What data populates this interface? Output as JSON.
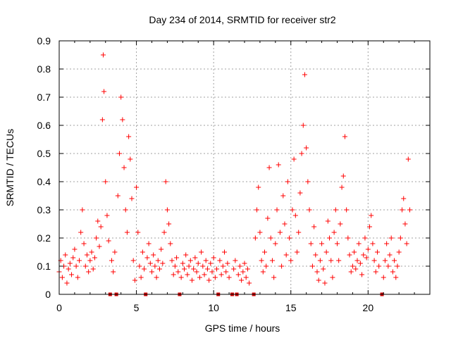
{
  "chart_data": {
    "type": "scatter",
    "title": "Day 234 of 2014, SRMTID for receiver str2",
    "xlabel": "GPS time / hours",
    "ylabel": "SRMTID / TECUs",
    "xlim": [
      0,
      24
    ],
    "ylim": [
      0,
      0.9
    ],
    "xticks": [
      0,
      5,
      10,
      15,
      20
    ],
    "xtick_labels": [
      "0",
      "5",
      "10",
      "15",
      "20"
    ],
    "yticks": [
      0,
      0.1,
      0.2,
      0.3,
      0.4,
      0.5,
      0.6,
      0.7,
      0.8,
      0.9
    ],
    "ytick_labels": [
      "0",
      "0.1",
      "0.2",
      "0.3",
      "0.4",
      "0.5",
      "0.6",
      "0.7",
      "0.8",
      "0.9"
    ],
    "grid": true,
    "marker": "+",
    "series_color": "#ff0000",
    "gap_marker_color": "#cc0000",
    "gap_markers_x": [
      3.3,
      3.7,
      5.6,
      7.8,
      10.3,
      11.2,
      11.5,
      12.6,
      20.9
    ],
    "series": [
      {
        "name": "SRMTID",
        "points": [
          [
            0.0,
            0.08
          ],
          [
            0.1,
            0.12
          ],
          [
            0.2,
            0.06
          ],
          [
            0.3,
            0.1
          ],
          [
            0.4,
            0.14
          ],
          [
            0.5,
            0.04
          ],
          [
            0.6,
            0.09
          ],
          [
            0.7,
            0.11
          ],
          [
            0.8,
            0.07
          ],
          [
            0.9,
            0.13
          ],
          [
            1.0,
            0.16
          ],
          [
            1.1,
            0.1
          ],
          [
            1.2,
            0.06
          ],
          [
            1.3,
            0.12
          ],
          [
            1.4,
            0.22
          ],
          [
            1.5,
            0.3
          ],
          [
            1.6,
            0.18
          ],
          [
            1.7,
            0.1
          ],
          [
            1.8,
            0.14
          ],
          [
            1.9,
            0.08
          ],
          [
            2.0,
            0.12
          ],
          [
            2.1,
            0.15
          ],
          [
            2.2,
            0.09
          ],
          [
            2.3,
            0.13
          ],
          [
            2.4,
            0.2
          ],
          [
            2.5,
            0.26
          ],
          [
            2.6,
            0.17
          ],
          [
            2.7,
            0.24
          ],
          [
            2.8,
            0.62
          ],
          [
            2.85,
            0.85
          ],
          [
            2.9,
            0.72
          ],
          [
            3.0,
            0.4
          ],
          [
            3.1,
            0.28
          ],
          [
            3.2,
            0.19
          ],
          [
            3.4,
            0.12
          ],
          [
            3.5,
            0.08
          ],
          [
            3.6,
            0.15
          ],
          [
            3.8,
            0.35
          ],
          [
            3.9,
            0.5
          ],
          [
            4.0,
            0.7
          ],
          [
            4.1,
            0.62
          ],
          [
            4.2,
            0.45
          ],
          [
            4.3,
            0.3
          ],
          [
            4.4,
            0.22
          ],
          [
            4.5,
            0.56
          ],
          [
            4.6,
            0.48
          ],
          [
            4.7,
            0.34
          ],
          [
            4.8,
            0.12
          ],
          [
            4.9,
            0.05
          ],
          [
            5.0,
            0.38
          ],
          [
            5.1,
            0.22
          ],
          [
            5.2,
            0.1
          ],
          [
            5.3,
            0.06
          ],
          [
            5.4,
            0.15
          ],
          [
            5.5,
            0.09
          ],
          [
            5.7,
            0.13
          ],
          [
            5.8,
            0.18
          ],
          [
            5.9,
            0.11
          ],
          [
            6.0,
            0.08
          ],
          [
            6.1,
            0.14
          ],
          [
            6.2,
            0.1
          ],
          [
            6.3,
            0.06
          ],
          [
            6.4,
            0.12
          ],
          [
            6.5,
            0.09
          ],
          [
            6.6,
            0.16
          ],
          [
            6.7,
            0.11
          ],
          [
            6.8,
            0.22
          ],
          [
            6.9,
            0.4
          ],
          [
            7.0,
            0.3
          ],
          [
            7.1,
            0.25
          ],
          [
            7.2,
            0.18
          ],
          [
            7.3,
            0.12
          ],
          [
            7.4,
            0.07
          ],
          [
            7.5,
            0.1
          ],
          [
            7.6,
            0.13
          ],
          [
            7.7,
            0.08
          ],
          [
            7.9,
            0.06
          ],
          [
            8.0,
            0.11
          ],
          [
            8.1,
            0.09
          ],
          [
            8.2,
            0.14
          ],
          [
            8.3,
            0.07
          ],
          [
            8.4,
            0.1
          ],
          [
            8.5,
            0.12
          ],
          [
            8.6,
            0.05
          ],
          [
            8.7,
            0.09
          ],
          [
            8.8,
            0.13
          ],
          [
            8.9,
            0.08
          ],
          [
            9.0,
            0.11
          ],
          [
            9.1,
            0.06
          ],
          [
            9.2,
            0.15
          ],
          [
            9.3,
            0.1
          ],
          [
            9.4,
            0.07
          ],
          [
            9.5,
            0.12
          ],
          [
            9.6,
            0.09
          ],
          [
            9.7,
            0.05
          ],
          [
            9.8,
            0.11
          ],
          [
            9.9,
            0.08
          ],
          [
            10.0,
            0.13
          ],
          [
            10.1,
            0.06
          ],
          [
            10.2,
            0.09
          ],
          [
            10.4,
            0.12
          ],
          [
            10.5,
            0.07
          ],
          [
            10.6,
            0.1
          ],
          [
            10.7,
            0.15
          ],
          [
            10.8,
            0.08
          ],
          [
            10.9,
            0.11
          ],
          [
            11.0,
            0.06
          ],
          [
            11.3,
            0.09
          ],
          [
            11.4,
            0.12
          ],
          [
            11.6,
            0.07
          ],
          [
            11.7,
            0.1
          ],
          [
            11.8,
            0.05
          ],
          [
            11.9,
            0.08
          ],
          [
            12.0,
            0.11
          ],
          [
            12.1,
            0.06
          ],
          [
            12.2,
            0.09
          ],
          [
            12.3,
            0.04
          ],
          [
            12.7,
            0.2
          ],
          [
            12.8,
            0.3
          ],
          [
            12.9,
            0.38
          ],
          [
            13.0,
            0.22
          ],
          [
            13.1,
            0.12
          ],
          [
            13.2,
            0.08
          ],
          [
            13.3,
            0.15
          ],
          [
            13.4,
            0.1
          ],
          [
            13.5,
            0.27
          ],
          [
            13.6,
            0.45
          ],
          [
            13.7,
            0.2
          ],
          [
            13.8,
            0.12
          ],
          [
            13.9,
            0.06
          ],
          [
            14.0,
            0.18
          ],
          [
            14.1,
            0.3
          ],
          [
            14.2,
            0.46
          ],
          [
            14.3,
            0.22
          ],
          [
            14.4,
            0.1
          ],
          [
            14.5,
            0.35
          ],
          [
            14.6,
            0.25
          ],
          [
            14.7,
            0.14
          ],
          [
            14.8,
            0.4
          ],
          [
            14.9,
            0.2
          ],
          [
            15.0,
            0.12
          ],
          [
            15.1,
            0.3
          ],
          [
            15.2,
            0.48
          ],
          [
            15.3,
            0.28
          ],
          [
            15.4,
            0.15
          ],
          [
            15.5,
            0.22
          ],
          [
            15.6,
            0.36
          ],
          [
            15.7,
            0.5
          ],
          [
            15.8,
            0.6
          ],
          [
            15.9,
            0.78
          ],
          [
            16.0,
            0.52
          ],
          [
            16.1,
            0.4
          ],
          [
            16.2,
            0.3
          ],
          [
            16.3,
            0.18
          ],
          [
            16.4,
            0.1
          ],
          [
            16.5,
            0.24
          ],
          [
            16.6,
            0.14
          ],
          [
            16.7,
            0.08
          ],
          [
            16.8,
            0.05
          ],
          [
            16.9,
            0.12
          ],
          [
            17.0,
            0.18
          ],
          [
            17.1,
            0.09
          ],
          [
            17.2,
            0.04
          ],
          [
            17.3,
            0.15
          ],
          [
            17.4,
            0.26
          ],
          [
            17.5,
            0.2
          ],
          [
            17.6,
            0.12
          ],
          [
            17.7,
            0.06
          ],
          [
            17.8,
            0.22
          ],
          [
            17.9,
            0.3
          ],
          [
            18.0,
            0.18
          ],
          [
            18.1,
            0.12
          ],
          [
            18.2,
            0.25
          ],
          [
            18.3,
            0.38
          ],
          [
            18.4,
            0.42
          ],
          [
            18.5,
            0.56
          ],
          [
            18.6,
            0.3
          ],
          [
            18.7,
            0.2
          ],
          [
            18.8,
            0.14
          ],
          [
            18.9,
            0.08
          ],
          [
            19.0,
            0.1
          ],
          [
            19.1,
            0.15
          ],
          [
            19.2,
            0.09
          ],
          [
            19.3,
            0.12
          ],
          [
            19.4,
            0.18
          ],
          [
            19.5,
            0.11
          ],
          [
            19.6,
            0.07
          ],
          [
            19.7,
            0.14
          ],
          [
            19.8,
            0.2
          ],
          [
            19.9,
            0.13
          ],
          [
            20.0,
            0.16
          ],
          [
            20.1,
            0.24
          ],
          [
            20.2,
            0.28
          ],
          [
            20.3,
            0.18
          ],
          [
            20.4,
            0.12
          ],
          [
            20.5,
            0.08
          ],
          [
            20.6,
            0.15
          ],
          [
            20.7,
            0.1
          ],
          [
            21.0,
            0.06
          ],
          [
            21.1,
            0.12
          ],
          [
            21.2,
            0.18
          ],
          [
            21.3,
            0.1
          ],
          [
            21.4,
            0.14
          ],
          [
            21.5,
            0.2
          ],
          [
            21.6,
            0.08
          ],
          [
            21.7,
            0.12
          ],
          [
            21.8,
            0.06
          ],
          [
            21.9,
            0.1
          ],
          [
            22.0,
            0.15
          ],
          [
            22.1,
            0.2
          ],
          [
            22.2,
            0.3
          ],
          [
            22.3,
            0.34
          ],
          [
            22.4,
            0.25
          ],
          [
            22.5,
            0.18
          ],
          [
            22.6,
            0.48
          ],
          [
            22.7,
            0.3
          ]
        ]
      }
    ]
  }
}
